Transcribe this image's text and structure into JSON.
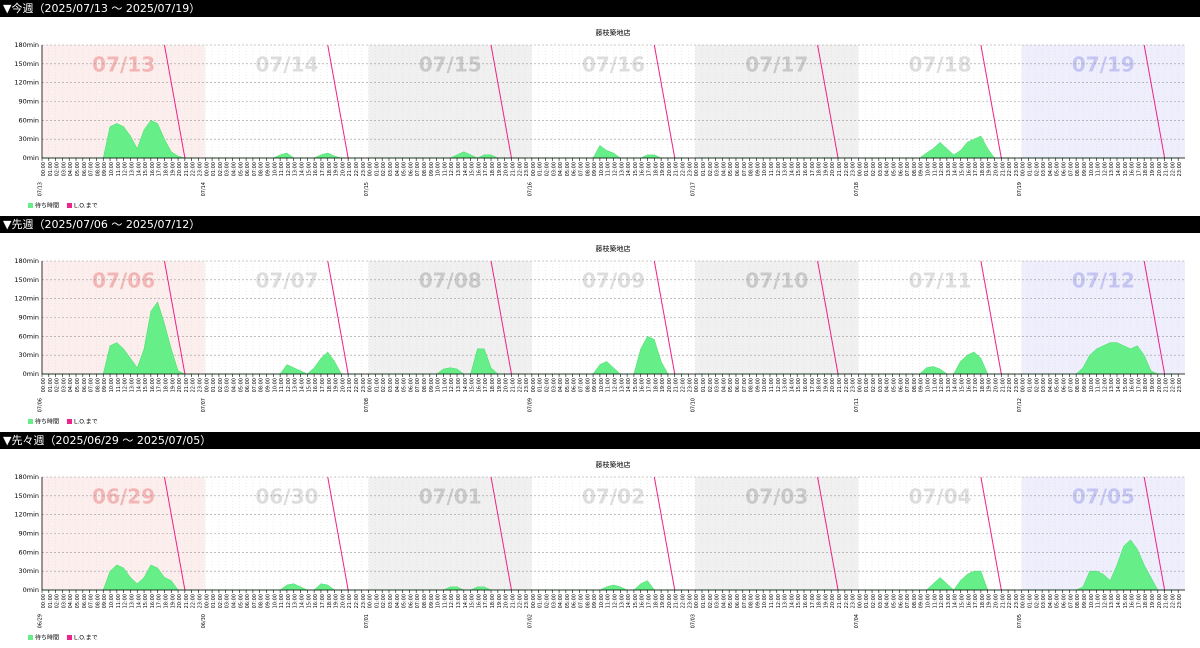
{
  "chart_data": [
    {
      "type": "area",
      "header": "▼今週（2025/07/13 ～ 2025/07/19）",
      "title": "藤枝築地店",
      "ylim": [
        0,
        180
      ],
      "yticks": [
        {
          "value": 0,
          "label": "0min"
        },
        {
          "value": 30,
          "label": "30min"
        },
        {
          "value": 60,
          "label": "60min"
        },
        {
          "value": 90,
          "label": "90min"
        },
        {
          "value": 120,
          "label": "120min"
        },
        {
          "value": 150,
          "label": "150min"
        },
        {
          "value": 180,
          "label": "180min"
        }
      ],
      "hours": [
        "00:00",
        "01:00",
        "02:00",
        "03:00",
        "04:00",
        "05:00",
        "06:00",
        "07:00",
        "08:00",
        "09:00",
        "10:00",
        "11:00",
        "12:00",
        "13:00",
        "14:00",
        "15:00",
        "16:00",
        "17:00",
        "18:00",
        "19:00",
        "20:00",
        "21:00",
        "22:00",
        "23:00"
      ],
      "series": [
        {
          "name": "待ち時間",
          "color": "#66ee88"
        },
        {
          "name": "L.O.まで",
          "color": "#ee2288",
          "x": [
            18,
            21
          ],
          "values": [
            180,
            0
          ]
        }
      ],
      "days": [
        {
          "label": "07/13",
          "values": [
            0,
            0,
            0,
            0,
            0,
            0,
            0,
            0,
            0,
            0,
            50,
            55,
            50,
            35,
            15,
            45,
            60,
            55,
            30,
            10,
            3,
            0,
            0,
            0
          ]
        },
        {
          "label": "07/14",
          "values": [
            0,
            0,
            0,
            0,
            0,
            0,
            0,
            0,
            0,
            0,
            0,
            5,
            8,
            0,
            0,
            0,
            0,
            5,
            8,
            3,
            0,
            0,
            0,
            0
          ]
        },
        {
          "label": "07/15",
          "values": [
            0,
            0,
            0,
            0,
            0,
            0,
            0,
            0,
            0,
            0,
            0,
            0,
            0,
            5,
            10,
            5,
            0,
            5,
            5,
            0,
            0,
            0,
            0,
            0
          ]
        },
        {
          "label": "07/16",
          "values": [
            0,
            0,
            0,
            0,
            0,
            0,
            0,
            0,
            0,
            0,
            20,
            12,
            8,
            0,
            0,
            0,
            0,
            5,
            5,
            0,
            0,
            0,
            0,
            0
          ]
        },
        {
          "label": "07/17",
          "values": [
            0,
            0,
            0,
            0,
            0,
            0,
            0,
            0,
            0,
            0,
            0,
            0,
            0,
            0,
            0,
            0,
            0,
            0,
            0,
            0,
            0,
            0,
            0,
            0
          ]
        },
        {
          "label": "07/18",
          "values": [
            0,
            0,
            0,
            0,
            0,
            0,
            0,
            0,
            0,
            0,
            8,
            15,
            25,
            15,
            5,
            12,
            25,
            30,
            35,
            15,
            0,
            0,
            0,
            0
          ]
        },
        {
          "label": "07/19",
          "values": [
            0,
            0,
            0,
            0,
            0,
            0,
            0,
            0,
            0,
            0,
            0,
            0,
            0,
            0,
            0,
            0,
            0,
            0,
            0,
            0,
            0,
            0,
            0,
            0
          ]
        }
      ]
    },
    {
      "type": "area",
      "header": "▼先週（2025/07/06 ～ 2025/07/12）",
      "title": "藤枝築地店",
      "ylim": [
        0,
        180
      ],
      "yticks": [
        {
          "value": 0,
          "label": "0min"
        },
        {
          "value": 30,
          "label": "30min"
        },
        {
          "value": 60,
          "label": "60min"
        },
        {
          "value": 90,
          "label": "90min"
        },
        {
          "value": 120,
          "label": "120min"
        },
        {
          "value": 150,
          "label": "150min"
        },
        {
          "value": 180,
          "label": "180min"
        }
      ],
      "hours": [
        "00:00",
        "01:00",
        "02:00",
        "03:00",
        "04:00",
        "05:00",
        "06:00",
        "07:00",
        "08:00",
        "09:00",
        "10:00",
        "11:00",
        "12:00",
        "13:00",
        "14:00",
        "15:00",
        "16:00",
        "17:00",
        "18:00",
        "19:00",
        "20:00",
        "21:00",
        "22:00",
        "23:00"
      ],
      "series": [
        {
          "name": "待ち時間",
          "color": "#66ee88"
        },
        {
          "name": "L.O.まで",
          "color": "#ee2288",
          "x": [
            18,
            21
          ],
          "values": [
            180,
            0
          ]
        }
      ],
      "days": [
        {
          "label": "07/06",
          "values": [
            0,
            0,
            0,
            0,
            0,
            0,
            0,
            0,
            0,
            0,
            45,
            50,
            40,
            25,
            10,
            40,
            100,
            115,
            80,
            40,
            5,
            0,
            0,
            0
          ]
        },
        {
          "label": "07/07",
          "values": [
            0,
            0,
            0,
            0,
            0,
            0,
            0,
            0,
            0,
            0,
            0,
            0,
            15,
            10,
            5,
            0,
            10,
            25,
            35,
            20,
            0,
            0,
            0,
            0
          ]
        },
        {
          "label": "07/08",
          "values": [
            0,
            0,
            0,
            0,
            0,
            0,
            0,
            0,
            0,
            0,
            0,
            8,
            10,
            8,
            0,
            0,
            40,
            40,
            10,
            0,
            0,
            0,
            0,
            0
          ]
        },
        {
          "label": "07/09",
          "values": [
            0,
            0,
            0,
            0,
            0,
            0,
            0,
            0,
            0,
            0,
            15,
            20,
            10,
            0,
            0,
            0,
            40,
            60,
            55,
            20,
            0,
            0,
            0,
            0
          ]
        },
        {
          "label": "07/10",
          "values": [
            0,
            0,
            0,
            0,
            0,
            0,
            0,
            0,
            0,
            0,
            0,
            0,
            0,
            0,
            0,
            0,
            0,
            0,
            0,
            0,
            0,
            0,
            0,
            0
          ]
        },
        {
          "label": "07/11",
          "values": [
            0,
            0,
            0,
            0,
            0,
            0,
            0,
            0,
            0,
            0,
            10,
            12,
            8,
            0,
            0,
            20,
            30,
            35,
            25,
            0,
            0,
            0,
            0,
            0
          ]
        },
        {
          "label": "07/12",
          "values": [
            0,
            0,
            0,
            0,
            0,
            0,
            0,
            0,
            0,
            10,
            30,
            40,
            45,
            50,
            50,
            45,
            40,
            45,
            30,
            5,
            0,
            0,
            0,
            0
          ]
        }
      ]
    },
    {
      "type": "area",
      "header": "▼先々週（2025/06/29 ～ 2025/07/05）",
      "title": "藤枝築地店",
      "ylim": [
        0,
        180
      ],
      "yticks": [
        {
          "value": 0,
          "label": "0min"
        },
        {
          "value": 30,
          "label": "30min"
        },
        {
          "value": 60,
          "label": "60min"
        },
        {
          "value": 90,
          "label": "90min"
        },
        {
          "value": 120,
          "label": "120min"
        },
        {
          "value": 150,
          "label": "150min"
        },
        {
          "value": 180,
          "label": "180min"
        }
      ],
      "hours": [
        "00:00",
        "01:00",
        "02:00",
        "03:00",
        "04:00",
        "05:00",
        "06:00",
        "07:00",
        "08:00",
        "09:00",
        "10:00",
        "11:00",
        "12:00",
        "13:00",
        "14:00",
        "15:00",
        "16:00",
        "17:00",
        "18:00",
        "19:00",
        "20:00",
        "21:00",
        "22:00",
        "23:00"
      ],
      "series": [
        {
          "name": "待ち時間",
          "color": "#66ee88"
        },
        {
          "name": "L.O.まで",
          "color": "#ee2288",
          "x": [
            18,
            21
          ],
          "values": [
            180,
            0
          ]
        }
      ],
      "days": [
        {
          "label": "06/29",
          "values": [
            0,
            0,
            0,
            0,
            0,
            0,
            0,
            0,
            0,
            0,
            30,
            40,
            35,
            20,
            10,
            20,
            40,
            35,
            20,
            15,
            0,
            0,
            0,
            0
          ]
        },
        {
          "label": "06/30",
          "values": [
            0,
            0,
            0,
            0,
            0,
            0,
            0,
            0,
            0,
            0,
            0,
            0,
            8,
            10,
            5,
            0,
            0,
            10,
            8,
            0,
            0,
            0,
            0,
            0
          ]
        },
        {
          "label": "07/01",
          "values": [
            0,
            0,
            0,
            0,
            0,
            0,
            0,
            0,
            0,
            0,
            0,
            0,
            5,
            5,
            0,
            0,
            5,
            5,
            0,
            0,
            0,
            0,
            0,
            0
          ]
        },
        {
          "label": "07/02",
          "values": [
            0,
            0,
            0,
            0,
            0,
            0,
            0,
            0,
            0,
            0,
            0,
            5,
            8,
            5,
            0,
            0,
            10,
            15,
            0,
            0,
            0,
            0,
            0,
            0
          ]
        },
        {
          "label": "07/03",
          "values": [
            0,
            0,
            0,
            0,
            0,
            0,
            0,
            0,
            0,
            0,
            0,
            0,
            0,
            0,
            0,
            0,
            0,
            0,
            0,
            0,
            0,
            0,
            0,
            0
          ]
        },
        {
          "label": "07/04",
          "values": [
            0,
            0,
            0,
            0,
            0,
            0,
            0,
            0,
            0,
            0,
            0,
            10,
            20,
            10,
            0,
            15,
            25,
            30,
            30,
            0,
            0,
            0,
            0,
            0
          ]
        },
        {
          "label": "07/05",
          "values": [
            0,
            0,
            0,
            0,
            0,
            0,
            0,
            0,
            0,
            5,
            30,
            30,
            25,
            15,
            40,
            70,
            80,
            65,
            40,
            20,
            0,
            0,
            0,
            0
          ]
        }
      ]
    }
  ]
}
